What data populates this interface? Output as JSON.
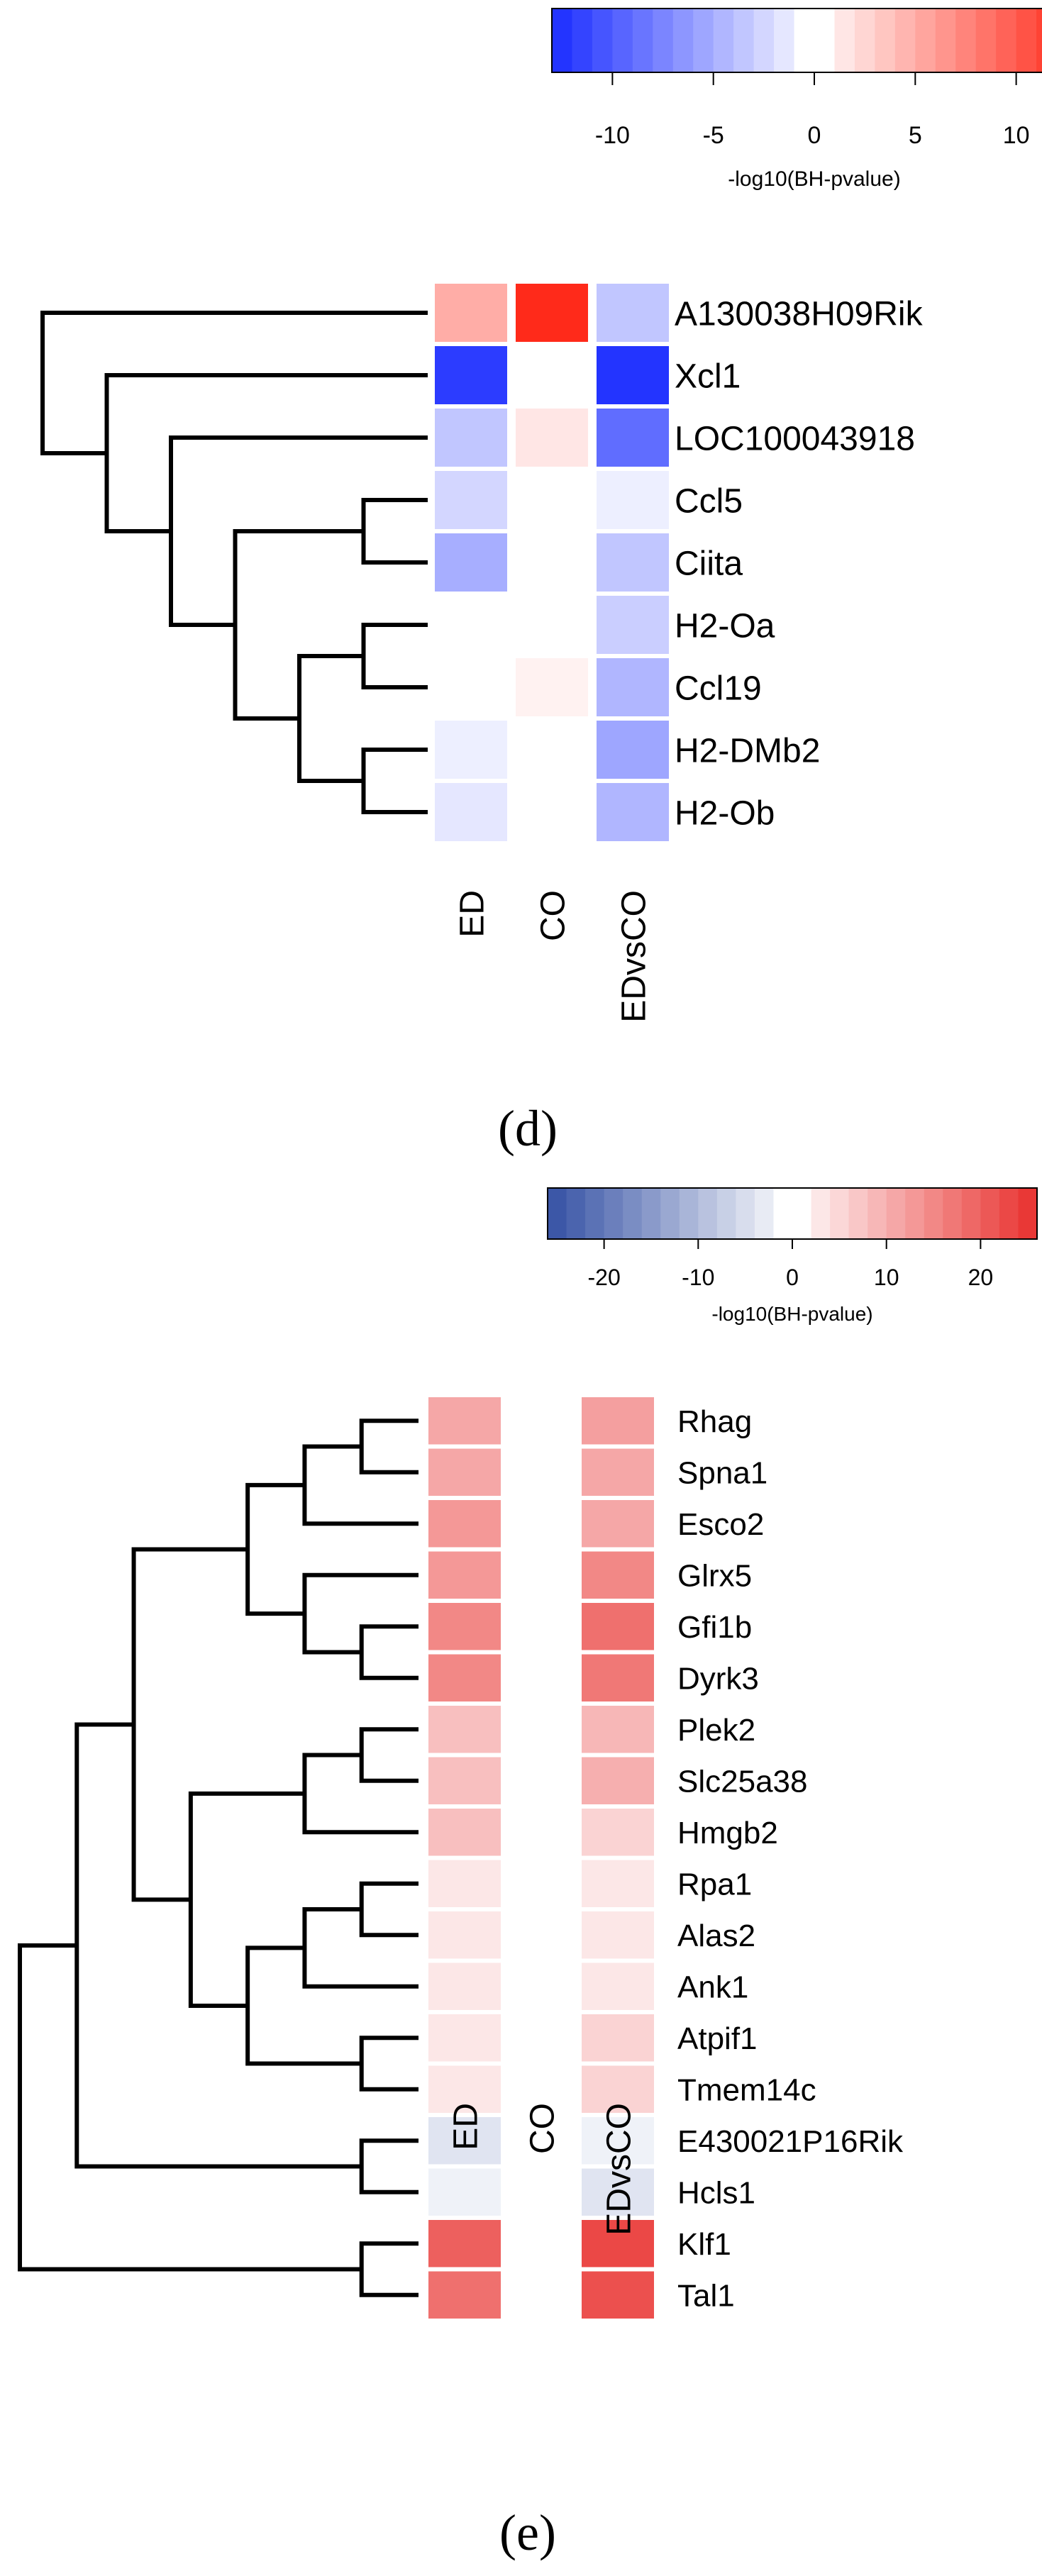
{
  "chart_data": [
    {
      "type": "heatmap",
      "panel_label": "(d)",
      "colorbar": {
        "title": "-log10(BH-pvalue)",
        "range": [
          -13,
          13
        ],
        "ticks": [
          "-10",
          "-5",
          "0",
          "5",
          "10"
        ],
        "tick_values": [
          -10,
          -5,
          0,
          5,
          10
        ],
        "steps": 26,
        "negative_color": "#1a2cff",
        "positive_color": "#ff2a1a"
      },
      "columns": [
        "ED",
        "CO",
        "EDvsCO"
      ],
      "rows": [
        "A130038H09Rik",
        "Xcl1",
        "LOC100043918",
        "Ccl5",
        "Ciita",
        "H2-Oa",
        "Ccl19",
        "H2-DMb2",
        "H2-Ob"
      ],
      "values": [
        [
          5,
          13,
          -3.5
        ],
        [
          -12,
          0,
          -12.5
        ],
        [
          -3.5,
          1.5,
          -9
        ],
        [
          -2.5,
          0,
          -1
        ],
        [
          -5,
          0,
          -3.5
        ],
        [
          0,
          0,
          -3
        ],
        [
          0,
          0.8,
          -4.5
        ],
        [
          -1,
          0,
          -5.5
        ],
        [
          -1.5,
          0,
          -4.5
        ]
      ],
      "dendrogram": [
        [
          5,
          6
        ],
        [
          7,
          8
        ],
        [
          9,
          10
        ],
        [
          3,
          4
        ],
        [
          11,
          12
        ],
        [
          2,
          13
        ],
        [
          1,
          14
        ],
        [
          0,
          15
        ]
      ]
    },
    {
      "type": "heatmap",
      "panel_label": "(e)",
      "colorbar": {
        "title": "-log10(BH-pvalue)",
        "range": [
          -26,
          26
        ],
        "ticks": [
          "-20",
          "-10",
          "0",
          "10",
          "20"
        ],
        "tick_values": [
          -20,
          -10,
          0,
          10,
          20
        ],
        "steps": 26,
        "negative_color": "#3450a3",
        "positive_color": "#e8302e"
      },
      "columns": [
        "ED",
        "CO",
        "EDvsCO"
      ],
      "rows": [
        "Rhag",
        "Spna1",
        "Esco2",
        "Glrx5",
        "Gfi1b",
        "Dyrk3",
        "Plek2",
        "Slc25a38",
        "Hmgb2",
        "Rpa1",
        "Alas2",
        "Ank1",
        "Atpif1",
        "Tmem14c",
        "E430021P16Rik",
        "Hcls1",
        "Klf1",
        "Tal1"
      ],
      "values": [
        [
          11,
          0,
          12
        ],
        [
          11,
          0,
          11
        ],
        [
          13,
          0,
          11
        ],
        [
          13,
          0,
          15
        ],
        [
          15,
          0,
          18
        ],
        [
          15,
          0,
          17
        ],
        [
          8,
          0,
          9
        ],
        [
          8,
          0,
          10
        ],
        [
          8,
          0,
          5.5
        ],
        [
          3,
          0,
          3
        ],
        [
          3,
          0,
          3
        ],
        [
          3,
          0,
          3
        ],
        [
          3,
          0,
          5.5
        ],
        [
          3,
          0,
          5.5
        ],
        [
          -4,
          0,
          -2
        ],
        [
          -2,
          0,
          -4
        ],
        [
          20,
          0,
          23
        ],
        [
          18,
          0,
          22
        ]
      ],
      "dendrogram": [
        [
          0,
          1
        ],
        [
          18,
          2
        ],
        [
          4,
          5
        ],
        [
          3,
          20
        ],
        [
          19,
          21
        ],
        [
          6,
          7
        ],
        [
          23,
          8
        ],
        [
          9,
          10
        ],
        [
          25,
          11
        ],
        [
          12,
          13
        ],
        [
          26,
          27
        ],
        [
          24,
          28
        ],
        [
          22,
          29
        ],
        [
          14,
          15
        ],
        [
          30,
          31
        ],
        [
          16,
          17
        ],
        [
          32,
          33
        ]
      ]
    }
  ]
}
